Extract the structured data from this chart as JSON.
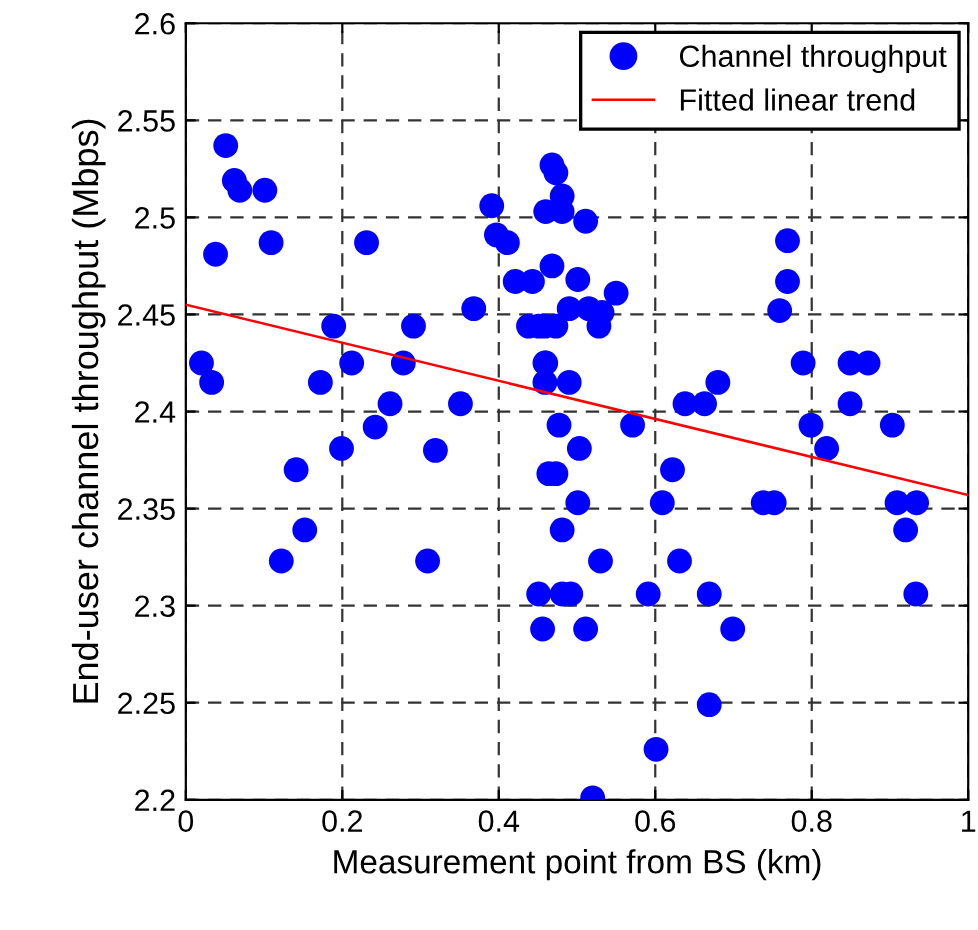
{
  "chart_data": {
    "type": "scatter",
    "xlabel": "Measurement point from BS (km)",
    "ylabel": "End-user channel throughput (Mbps)",
    "xlim": [
      0,
      1
    ],
    "ylim": [
      2.2,
      2.6
    ],
    "xticks": [
      0,
      0.2,
      0.4,
      0.6,
      0.8,
      1
    ],
    "yticks": [
      2.2,
      2.25,
      2.3,
      2.35,
      2.4,
      2.45,
      2.5,
      2.55,
      2.6
    ],
    "grid": true,
    "legend": "top right",
    "marker": "circle",
    "series": [
      {
        "name": "Channel throughput",
        "color": "#0000ff",
        "x": [
          0.051,
          0.062,
          0.069,
          0.101,
          0.038,
          0.109,
          0.231,
          0.391,
          0.397,
          0.411,
          0.421,
          0.443,
          0.468,
          0.468,
          0.368,
          0.189,
          0.291,
          0.212,
          0.278,
          0.02,
          0.033,
          0.172,
          0.261,
          0.351,
          0.242,
          0.319,
          0.199,
          0.141,
          0.438,
          0.459,
          0.459,
          0.459,
          0.477,
          0.473,
          0.481,
          0.46,
          0.481,
          0.511,
          0.501,
          0.55,
          0.49,
          0.515,
          0.532,
          0.451,
          0.473,
          0.528,
          0.46,
          0.49,
          0.503,
          0.571,
          0.622,
          0.638,
          0.663,
          0.68,
          0.769,
          0.769,
          0.759,
          0.789,
          0.849,
          0.872,
          0.849,
          0.799,
          0.819,
          0.903,
          0.464,
          0.473,
          0.501,
          0.609,
          0.738,
          0.752,
          0.909,
          0.934,
          0.92,
          0.481,
          0.53,
          0.631,
          0.451,
          0.481,
          0.492,
          0.591,
          0.669,
          0.933,
          0.456,
          0.511,
          0.699,
          0.669,
          0.601,
          0.52,
          0.152,
          0.122,
          0.309
        ],
        "values": [
          2.537,
          2.519,
          2.514,
          2.514,
          2.481,
          2.487,
          2.487,
          2.506,
          2.491,
          2.487,
          2.467,
          2.467,
          2.475,
          2.527,
          2.453,
          2.444,
          2.444,
          2.425,
          2.425,
          2.425,
          2.415,
          2.415,
          2.404,
          2.404,
          2.392,
          2.38,
          2.381,
          2.37,
          2.444,
          2.444,
          2.425,
          2.415,
          2.393,
          2.523,
          2.511,
          2.503,
          2.503,
          2.498,
          2.468,
          2.461,
          2.453,
          2.453,
          2.451,
          2.444,
          2.444,
          2.444,
          2.425,
          2.415,
          2.381,
          2.393,
          2.37,
          2.404,
          2.404,
          2.415,
          2.488,
          2.467,
          2.452,
          2.425,
          2.425,
          2.425,
          2.404,
          2.393,
          2.381,
          2.393,
          2.368,
          2.368,
          2.353,
          2.353,
          2.353,
          2.353,
          2.353,
          2.353,
          2.339,
          2.339,
          2.323,
          2.323,
          2.306,
          2.306,
          2.306,
          2.306,
          2.306,
          2.306,
          2.288,
          2.288,
          2.288,
          2.249,
          2.226,
          2.201,
          2.339,
          2.323,
          2.323
        ]
      },
      {
        "name": "Fitted linear trend",
        "type": "line",
        "color": "#ff0000",
        "marker": "none",
        "line_style": "solid",
        "x": [
          0,
          1
        ],
        "values": [
          2.455,
          2.357
        ]
      }
    ]
  }
}
